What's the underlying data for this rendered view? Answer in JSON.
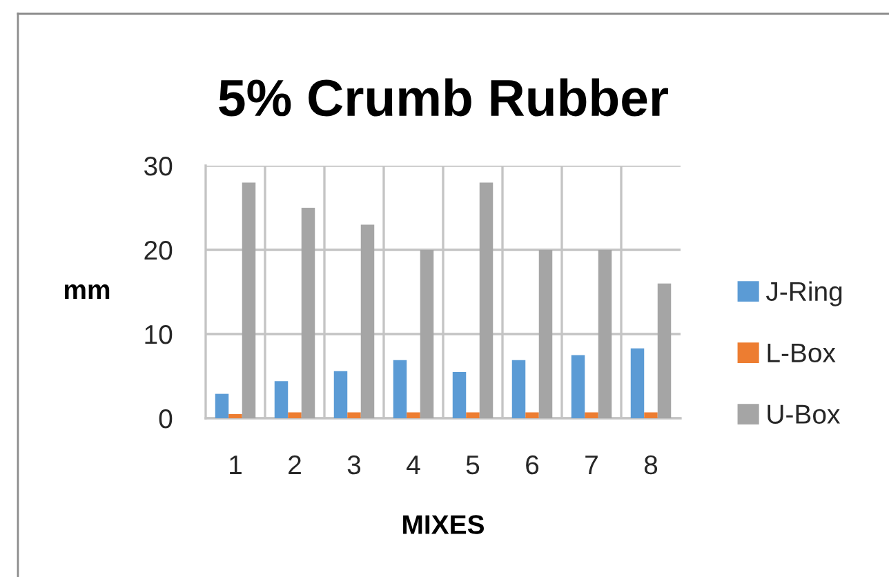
{
  "chart_data": {
    "type": "bar",
    "title": "5% Crumb Rubber",
    "xlabel": "MIXES",
    "ylabel": "mm",
    "categories": [
      "1",
      "2",
      "3",
      "4",
      "5",
      "6",
      "7",
      "8"
    ],
    "series": [
      {
        "name": "J-Ring",
        "color": "#5b9bd5",
        "values": [
          2.9,
          4.4,
          5.6,
          6.9,
          5.5,
          6.9,
          7.5,
          8.3
        ]
      },
      {
        "name": "L-Box",
        "color": "#ed7d31",
        "values": [
          0.5,
          0.7,
          0.7,
          0.7,
          0.7,
          0.7,
          0.7,
          0.7
        ]
      },
      {
        "name": "U-Box",
        "color": "#a5a5a5",
        "values": [
          28,
          25,
          23,
          20,
          28,
          20,
          20,
          16
        ]
      }
    ],
    "ylim": [
      0,
      30
    ],
    "yticks": [
      0,
      10,
      20,
      30
    ],
    "grid": true,
    "legend": "right"
  }
}
